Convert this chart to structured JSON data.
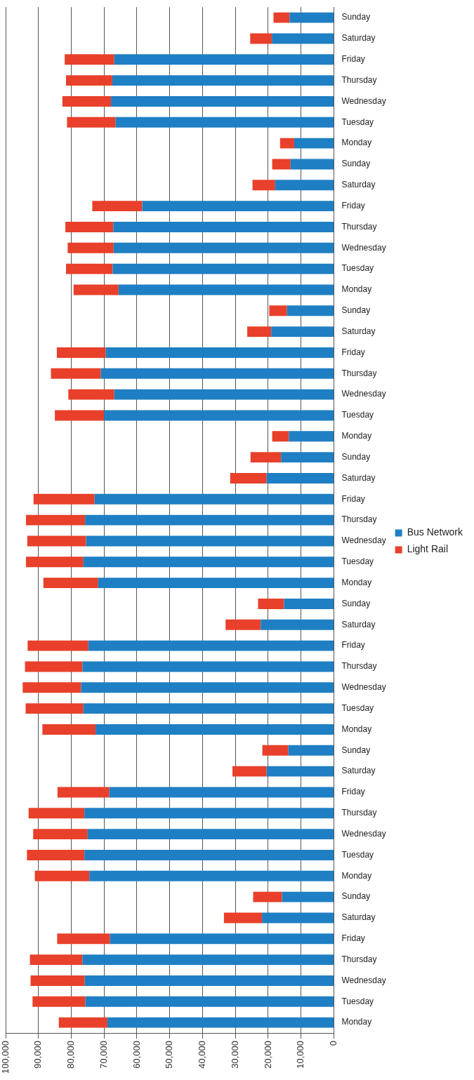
{
  "chart_data": {
    "type": "bar",
    "orientation": "horizontal",
    "stacked": true,
    "categories": [
      "Sunday",
      "Saturday",
      "Friday",
      "Thursday",
      "Wednesday",
      "Tuesday",
      "Monday",
      "Sunday",
      "Saturday",
      "Friday",
      "Thursday",
      "Wednesday",
      "Tuesday",
      "Monday",
      "Sunday",
      "Saturday",
      "Friday",
      "Thursday",
      "Wednesday",
      "Tuesday",
      "Monday",
      "Sunday",
      "Saturday",
      "Friday",
      "Thursday",
      "Wednesday",
      "Tuesday",
      "Monday",
      "Sunday",
      "Saturday",
      "Friday",
      "Thursday",
      "Wednesday",
      "Tuesday",
      "Monday",
      "Sunday",
      "Saturday",
      "Friday",
      "Thursday",
      "Wednesday",
      "Tuesday",
      "Monday",
      "Sunday",
      "Saturday",
      "Friday",
      "Thursday",
      "Wednesday",
      "Tuesday",
      "Monday"
    ],
    "series": [
      {
        "name": "Bus Network",
        "color": "#1f7fc4",
        "values": [
          13500,
          18900,
          66900,
          67500,
          67900,
          66500,
          12100,
          13200,
          17900,
          58400,
          67200,
          67100,
          67400,
          65600,
          14300,
          19100,
          69500,
          71000,
          66900,
          70000,
          13700,
          16100,
          20500,
          72900,
          75800,
          75500,
          76300,
          71800,
          15200,
          22300,
          74800,
          76600,
          77000,
          76300,
          72600,
          13900,
          20500,
          68400,
          76000,
          75000,
          76000,
          74500,
          15800,
          21900,
          68200,
          76600,
          75900,
          75700,
          69000
        ]
      },
      {
        "name": "Light Rail",
        "color": "#e8402a",
        "values": [
          4900,
          6600,
          15100,
          14100,
          14800,
          14800,
          4300,
          5600,
          6900,
          15200,
          14600,
          14000,
          14200,
          13700,
          5400,
          7300,
          14900,
          15200,
          14000,
          15000,
          5100,
          9300,
          11100,
          18600,
          18000,
          17900,
          17500,
          16700,
          7900,
          10700,
          18500,
          17500,
          17800,
          17600,
          16200,
          7900,
          10400,
          15800,
          17000,
          16600,
          17500,
          16600,
          8800,
          11600,
          16100,
          16000,
          16500,
          16100,
          14800
        ]
      }
    ],
    "xlim": [
      100000,
      0
    ],
    "xticks": [
      {
        "value": 100000,
        "label": "100,000"
      },
      {
        "value": 90000,
        "label": "90,000"
      },
      {
        "value": 80000,
        "label": "80,000"
      },
      {
        "value": 70000,
        "label": "70,000"
      },
      {
        "value": 60000,
        "label": "60,000"
      },
      {
        "value": 50000,
        "label": "50,000"
      },
      {
        "value": 40000,
        "label": "40,000"
      },
      {
        "value": 30000,
        "label": "30,000"
      },
      {
        "value": 20000,
        "label": "20,000"
      },
      {
        "value": 10000,
        "label": "10,000"
      },
      0
    ],
    "grid": "x",
    "legend": "right"
  }
}
